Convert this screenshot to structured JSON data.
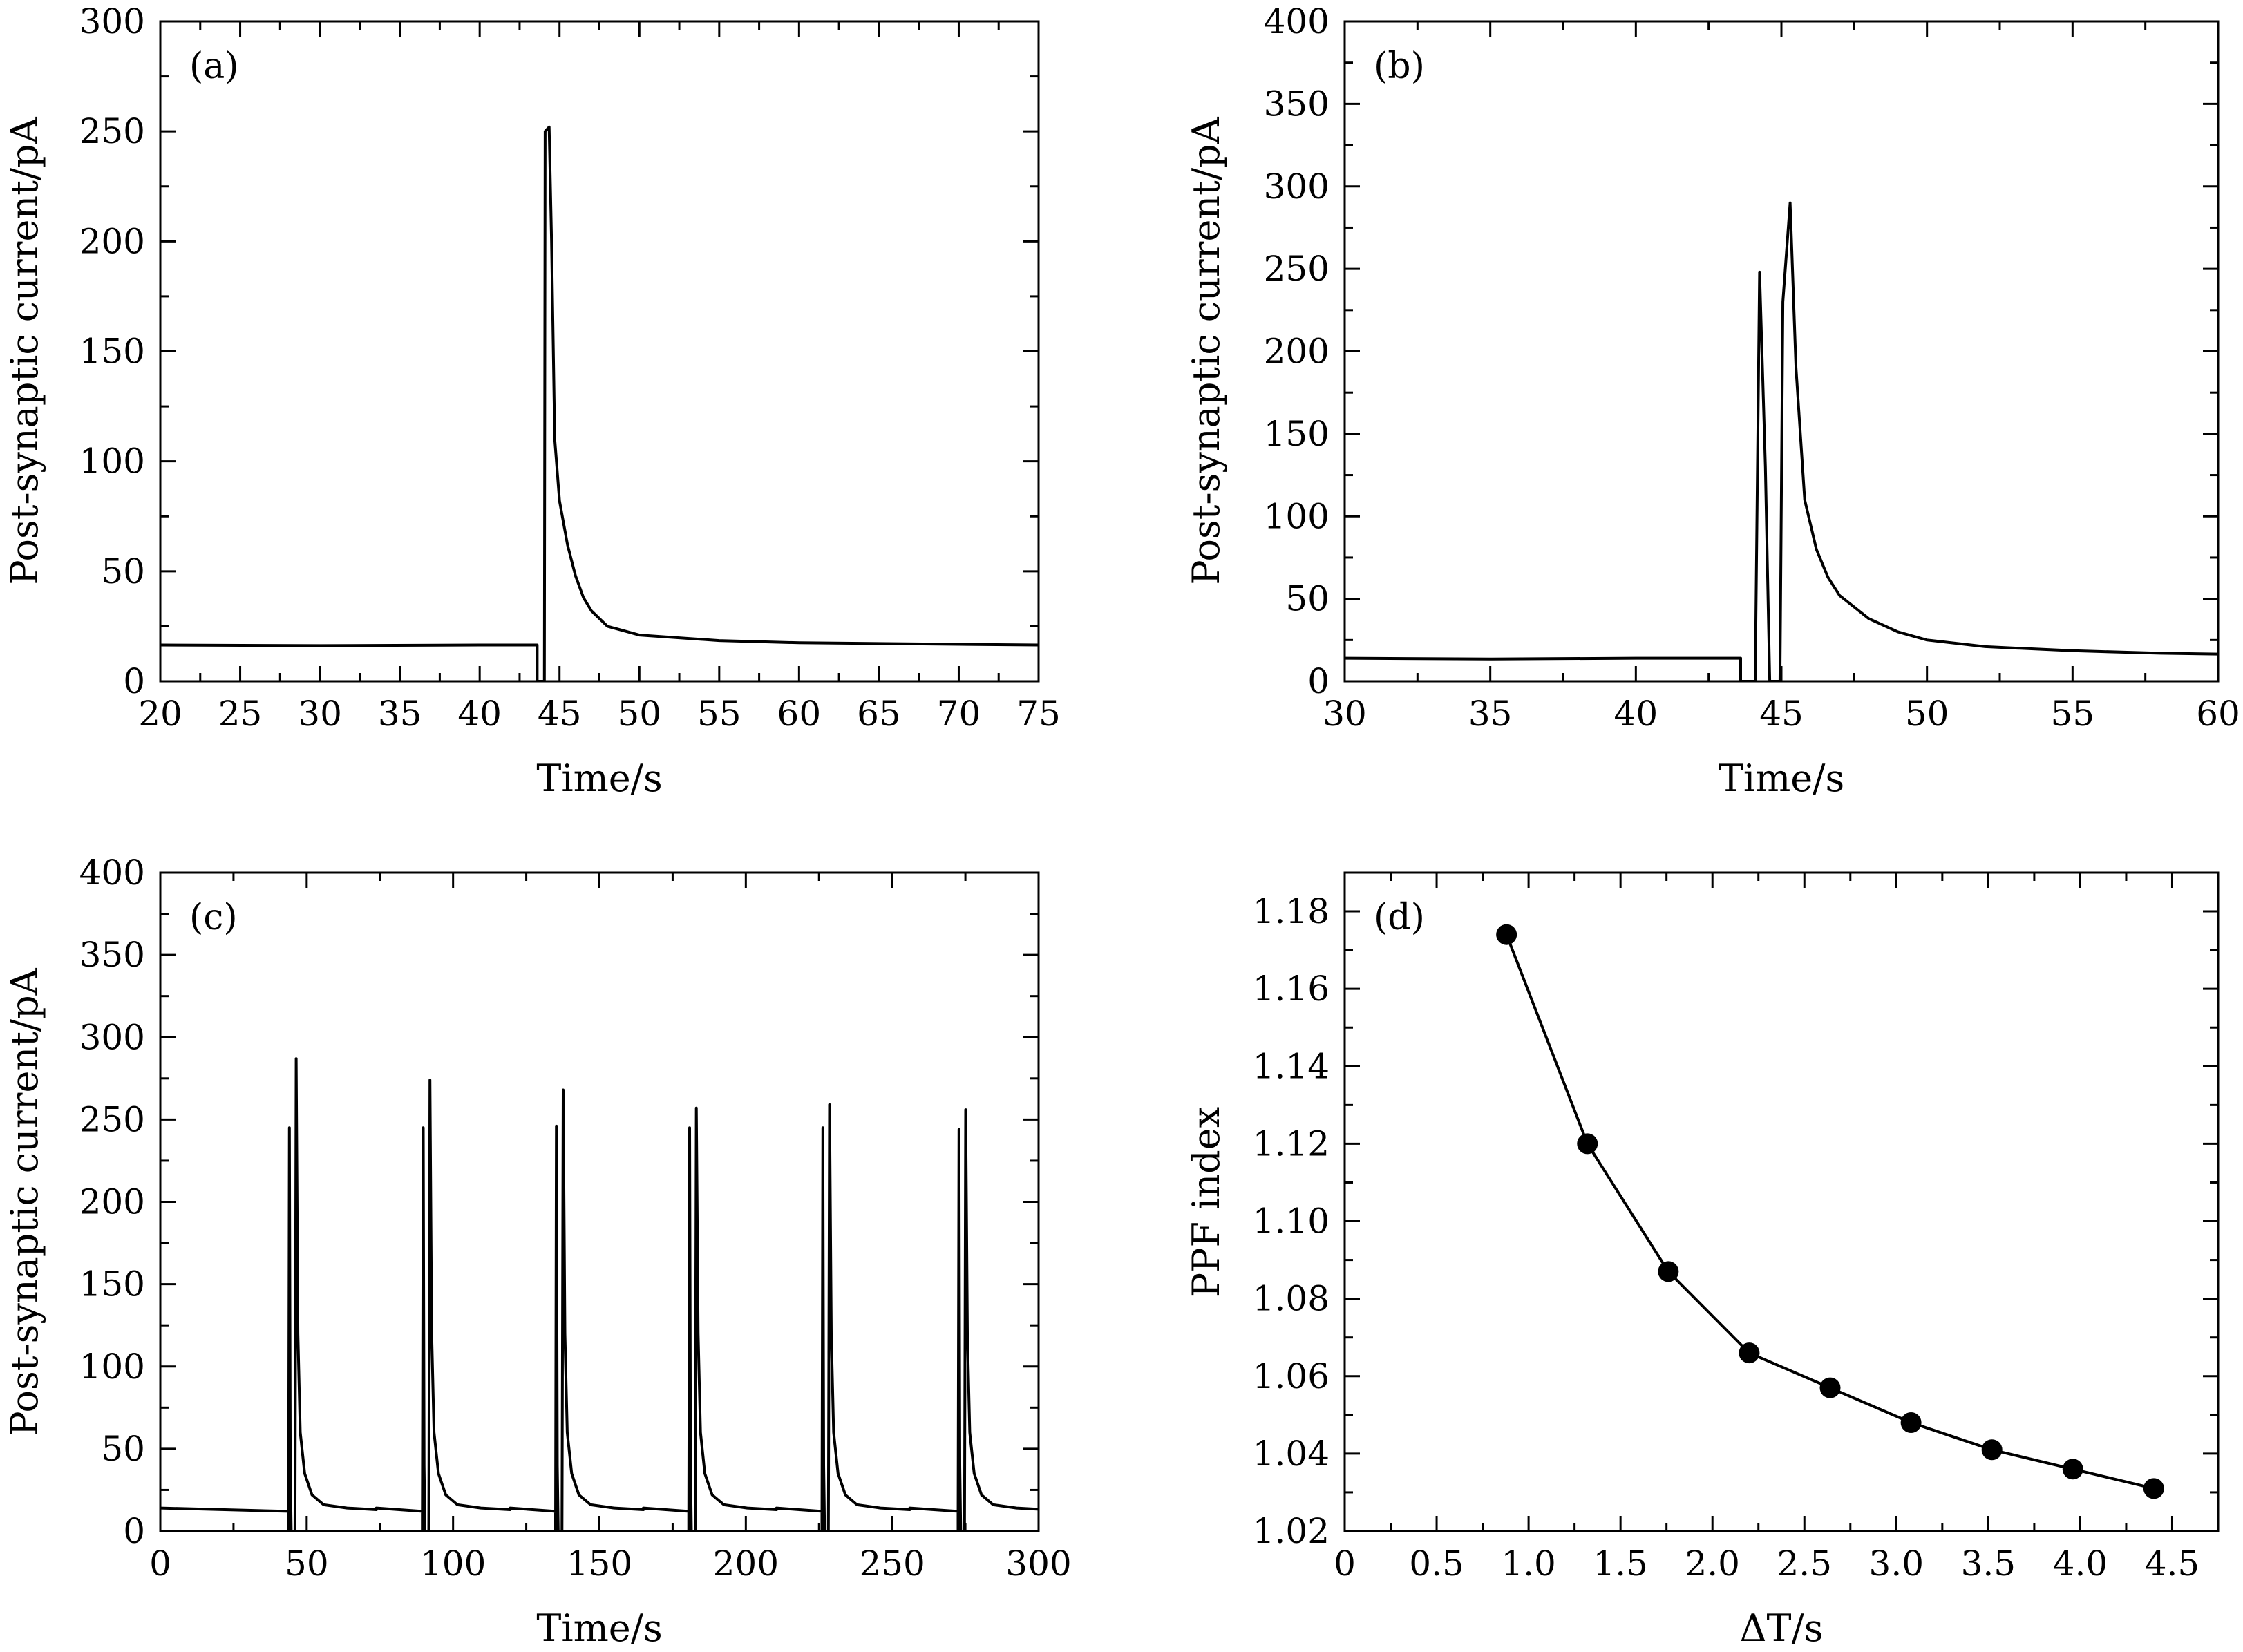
{
  "chart_data": [
    {
      "type": "line",
      "panel_label": "(a)",
      "xlabel": "Time/s",
      "ylabel": "Post-synaptic current/pA",
      "xlim": [
        20,
        75
      ],
      "ylim": [
        0,
        300
      ],
      "xticks": [
        20,
        25,
        30,
        35,
        40,
        45,
        50,
        55,
        60,
        65,
        70,
        75
      ],
      "yticks": [
        0,
        50,
        100,
        150,
        200,
        250,
        300
      ],
      "grid": false,
      "legend": "none",
      "series": [
        {
          "x": [
            20,
            30,
            40,
            43.6,
            43.6,
            44.05,
            44.1,
            44.35,
            44.5,
            44.7,
            45,
            45.5,
            46,
            46.5,
            47,
            48,
            50,
            55,
            60,
            70,
            75
          ],
          "y": [
            16.5,
            16.2,
            16.5,
            16.5,
            0,
            0,
            250,
            252,
            200,
            110,
            82,
            62,
            48,
            38,
            32,
            25,
            21,
            18.5,
            17.5,
            16.8,
            16.5
          ]
        }
      ]
    },
    {
      "type": "line",
      "panel_label": "(b)",
      "xlabel": "Time/s",
      "ylabel": "Post-synaptic current/pA",
      "xlim": [
        30,
        60
      ],
      "ylim": [
        0,
        400
      ],
      "xticks": [
        30,
        35,
        40,
        45,
        50,
        55,
        60
      ],
      "yticks": [
        0,
        50,
        100,
        150,
        200,
        250,
        300,
        350,
        400
      ],
      "grid": false,
      "legend": "none",
      "series": [
        {
          "x": [
            30,
            35,
            40,
            43.6,
            43.6,
            44.1,
            44.25,
            44.45,
            44.6,
            44.95,
            45.05,
            45.3,
            45.5,
            45.8,
            46.2,
            46.6,
            47,
            48,
            49,
            50,
            52,
            55,
            58,
            60
          ],
          "y": [
            14,
            13.5,
            14,
            14,
            0,
            0,
            248,
            130,
            0,
            0,
            230,
            290,
            190,
            110,
            80,
            63,
            52,
            38,
            30,
            25,
            21,
            18.5,
            17,
            16.5
          ]
        }
      ]
    },
    {
      "type": "line",
      "panel_label": "(c)",
      "xlabel": "Time/s",
      "ylabel": "Post-synaptic current/pA",
      "xlim": [
        0,
        300
      ],
      "ylim": [
        0,
        400
      ],
      "xticks": [
        0,
        50,
        100,
        150,
        200,
        250,
        300
      ],
      "yticks": [
        0,
        50,
        100,
        150,
        200,
        250,
        300,
        350,
        400
      ],
      "grid": false,
      "legend": "none",
      "baseline": 12,
      "pulses": [
        {
          "t": 43.8,
          "first_peak": 245,
          "second_peak": 287
        },
        {
          "t": 89.5,
          "first_peak": 245,
          "second_peak": 274
        },
        {
          "t": 135,
          "first_peak": 246,
          "second_peak": 268
        },
        {
          "t": 180.5,
          "first_peak": 245,
          "second_peak": 257
        },
        {
          "t": 226,
          "first_peak": 245,
          "second_peak": 259
        },
        {
          "t": 272.5,
          "first_peak": 244,
          "second_peak": 256
        }
      ]
    },
    {
      "type": "line",
      "panel_label": "(d)",
      "xlabel": "ΔT/s",
      "ylabel": "PPF index",
      "xlim": [
        0,
        4.75
      ],
      "ylim": [
        1.02,
        1.19
      ],
      "xticks": [
        0,
        0.5,
        1.0,
        1.5,
        2.0,
        2.5,
        3.0,
        3.5,
        4.0,
        4.5
      ],
      "xtick_labels": [
        "0",
        "0.5",
        "1.0",
        "1.5",
        "2.0",
        "2.5",
        "3.0",
        "3.5",
        "4.0",
        "4.5"
      ],
      "yticks": [
        1.02,
        1.04,
        1.06,
        1.08,
        1.1,
        1.12,
        1.14,
        1.16,
        1.18
      ],
      "ytick_labels": [
        "1.02",
        "1.04",
        "1.06",
        "1.08",
        "1.10",
        "1.12",
        "1.14",
        "1.16",
        "1.18"
      ],
      "grid": false,
      "legend": "none",
      "markers": true,
      "series": [
        {
          "x": [
            0.88,
            1.32,
            1.76,
            2.2,
            2.64,
            3.08,
            3.52,
            3.96,
            4.4
          ],
          "y": [
            1.174,
            1.12,
            1.087,
            1.066,
            1.057,
            1.048,
            1.041,
            1.036,
            1.031
          ]
        }
      ]
    }
  ]
}
